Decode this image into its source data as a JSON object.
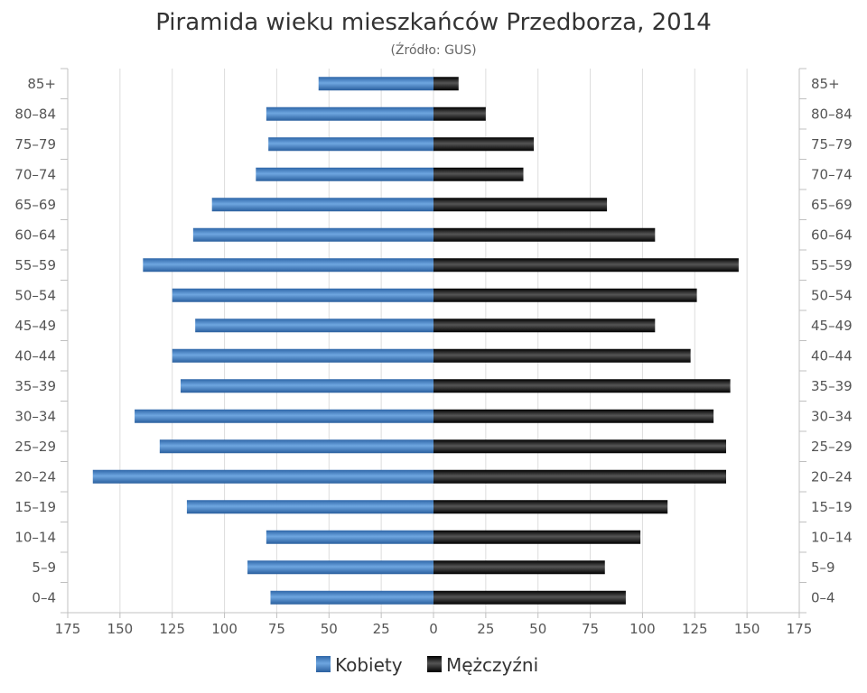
{
  "chart_data": {
    "type": "bar",
    "orientation": "horizontal",
    "title": "Piramida wieku mieszkańców Przedborza, 2014",
    "subtitle": "(Źródło: GUS)",
    "categories": [
      "85+",
      "80–84",
      "75–79",
      "70–74",
      "65–69",
      "60–64",
      "55–59",
      "50–54",
      "45–49",
      "40–44",
      "35–39",
      "30–34",
      "25–29",
      "20–24",
      "15–19",
      "10–14",
      "5–9",
      "0–4"
    ],
    "series": [
      {
        "name": "Kobiety",
        "color": "#3e7bbf",
        "side": "left",
        "values": [
          55,
          80,
          79,
          85,
          106,
          115,
          139,
          125,
          114,
          125,
          121,
          143,
          131,
          163,
          118,
          80,
          89,
          78
        ]
      },
      {
        "name": "Mężczyźni",
        "color": "#1a1a1a",
        "side": "right",
        "values": [
          12,
          25,
          48,
          43,
          83,
          106,
          146,
          126,
          106,
          123,
          142,
          134,
          140,
          140,
          112,
          99,
          82,
          92
        ]
      }
    ],
    "xlim": [
      -175,
      175
    ],
    "xticks": [
      "175",
      "150",
      "125",
      "100",
      "75",
      "50",
      "25",
      "0",
      "25",
      "50",
      "75",
      "100",
      "125",
      "150",
      "175"
    ],
    "grid": true,
    "legend": "bottom-center"
  }
}
